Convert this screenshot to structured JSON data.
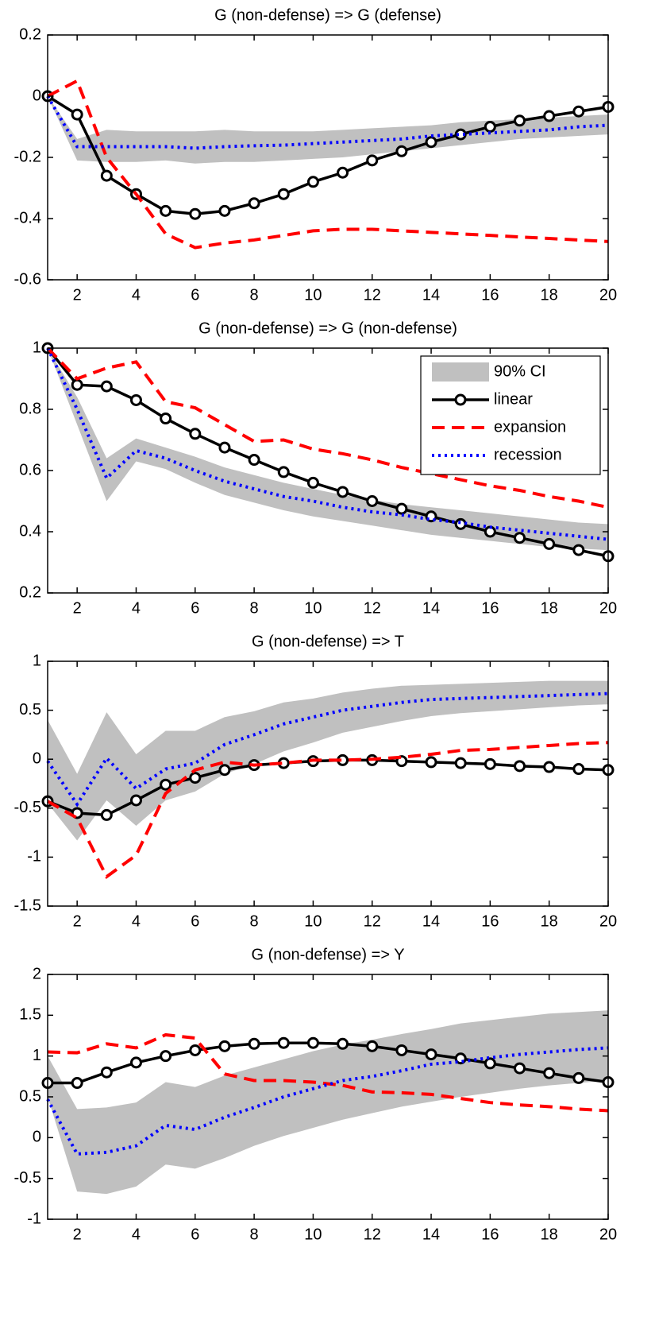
{
  "chart_data": [
    {
      "type": "line",
      "title": "G (non-defense) => G (defense)",
      "x": [
        1,
        2,
        3,
        4,
        5,
        6,
        7,
        8,
        9,
        10,
        11,
        12,
        13,
        14,
        15,
        16,
        17,
        18,
        19,
        20
      ],
      "xlim": [
        1,
        20
      ],
      "xticks": [
        2,
        4,
        6,
        8,
        10,
        12,
        14,
        16,
        18,
        20
      ],
      "ylim": [
        -0.6,
        0.2
      ],
      "yticks": [
        -0.6,
        -0.4,
        -0.2,
        0,
        0.2
      ],
      "series": [
        {
          "color": "#c0c0c0",
          "lower": [
            0,
            -0.21,
            -0.215,
            -0.215,
            -0.21,
            -0.22,
            -0.215,
            -0.215,
            -0.21,
            -0.205,
            -0.2,
            -0.19,
            -0.18,
            -0.17,
            -0.16,
            -0.15,
            -0.14,
            -0.135,
            -0.13,
            -0.125
          ],
          "upper": [
            0,
            -0.14,
            -0.11,
            -0.115,
            -0.115,
            -0.115,
            -0.11,
            -0.115,
            -0.115,
            -0.115,
            -0.11,
            -0.105,
            -0.1,
            -0.095,
            -0.085,
            -0.08,
            -0.075,
            -0.07,
            -0.065,
            -0.06
          ]
        },
        {
          "color": "#000000",
          "dash": "solid",
          "marker": "circle",
          "values": [
            0,
            -0.06,
            -0.26,
            -0.32,
            -0.375,
            -0.385,
            -0.375,
            -0.35,
            -0.32,
            -0.28,
            -0.25,
            -0.21,
            -0.18,
            -0.15,
            -0.125,
            -0.1,
            -0.08,
            -0.065,
            -0.05,
            -0.035
          ]
        },
        {
          "color": "#ff0000",
          "dash": "dashed",
          "values": [
            0,
            0.05,
            -0.2,
            -0.32,
            -0.45,
            -0.495,
            -0.48,
            -0.47,
            -0.455,
            -0.44,
            -0.435,
            -0.435,
            -0.44,
            -0.445,
            -0.45,
            -0.455,
            -0.46,
            -0.465,
            -0.47,
            -0.475
          ]
        },
        {
          "color": "#0000ff",
          "dash": "dotted",
          "values": [
            0,
            -0.165,
            -0.165,
            -0.165,
            -0.165,
            -0.17,
            -0.165,
            -0.162,
            -0.16,
            -0.155,
            -0.15,
            -0.145,
            -0.14,
            -0.13,
            -0.125,
            -0.12,
            -0.115,
            -0.11,
            -0.1,
            -0.095
          ]
        }
      ]
    },
    {
      "type": "line",
      "title": "G (non-defense) => G (non-defense)",
      "x": [
        1,
        2,
        3,
        4,
        5,
        6,
        7,
        8,
        9,
        10,
        11,
        12,
        13,
        14,
        15,
        16,
        17,
        18,
        19,
        20
      ],
      "xlim": [
        1,
        20
      ],
      "xticks": [
        2,
        4,
        6,
        8,
        10,
        12,
        14,
        16,
        18,
        20
      ],
      "ylim": [
        0.2,
        1
      ],
      "yticks": [
        0.2,
        0.4,
        0.6,
        0.8,
        1
      ],
      "legend": "upper right",
      "series": [
        {
          "name": "90% CI",
          "color": "#c0c0c0",
          "lower": [
            1,
            0.75,
            0.5,
            0.63,
            0.605,
            0.56,
            0.52,
            0.495,
            0.47,
            0.45,
            0.435,
            0.42,
            0.405,
            0.39,
            0.38,
            0.37,
            0.36,
            0.35,
            0.345,
            0.34
          ],
          "upper": [
            1,
            0.84,
            0.64,
            0.705,
            0.675,
            0.645,
            0.61,
            0.585,
            0.56,
            0.54,
            0.52,
            0.505,
            0.49,
            0.48,
            0.47,
            0.46,
            0.45,
            0.44,
            0.43,
            0.425
          ]
        },
        {
          "name": "linear",
          "color": "#000000",
          "dash": "solid",
          "marker": "circle",
          "values": [
            1,
            0.88,
            0.875,
            0.83,
            0.77,
            0.72,
            0.675,
            0.635,
            0.595,
            0.56,
            0.53,
            0.5,
            0.475,
            0.45,
            0.425,
            0.4,
            0.38,
            0.36,
            0.34,
            0.32
          ]
        },
        {
          "name": "expansion",
          "color": "#ff0000",
          "dash": "dashed",
          "values": [
            1,
            0.9,
            0.935,
            0.955,
            0.825,
            0.805,
            0.75,
            0.695,
            0.7,
            0.67,
            0.655,
            0.635,
            0.61,
            0.59,
            0.57,
            0.55,
            0.535,
            0.515,
            0.5,
            0.48
          ]
        },
        {
          "name": "recession",
          "color": "#0000ff",
          "dash": "dotted",
          "values": [
            1,
            0.8,
            0.575,
            0.665,
            0.64,
            0.6,
            0.565,
            0.54,
            0.515,
            0.5,
            0.48,
            0.465,
            0.455,
            0.44,
            0.43,
            0.415,
            0.405,
            0.395,
            0.385,
            0.375
          ]
        }
      ]
    },
    {
      "type": "line",
      "title": "G (non-defense) => T",
      "x": [
        1,
        2,
        3,
        4,
        5,
        6,
        7,
        8,
        9,
        10,
        11,
        12,
        13,
        14,
        15,
        16,
        17,
        18,
        19,
        20
      ],
      "xlim": [
        1,
        20
      ],
      "xticks": [
        2,
        4,
        6,
        8,
        10,
        12,
        14,
        16,
        18,
        20
      ],
      "ylim": [
        -1.5,
        1
      ],
      "yticks": [
        -1.5,
        -1,
        -0.5,
        0,
        0.5,
        1
      ],
      "series": [
        {
          "color": "#c0c0c0",
          "lower": [
            -0.45,
            -0.83,
            -0.42,
            -0.68,
            -0.42,
            -0.33,
            -0.15,
            -0.05,
            0.08,
            0.17,
            0.27,
            0.33,
            0.39,
            0.44,
            0.47,
            0.49,
            0.51,
            0.53,
            0.55,
            0.56
          ],
          "upper": [
            0.4,
            -0.15,
            0.48,
            0.05,
            0.29,
            0.29,
            0.43,
            0.49,
            0.58,
            0.62,
            0.68,
            0.72,
            0.75,
            0.76,
            0.77,
            0.78,
            0.79,
            0.8,
            0.8,
            0.8
          ]
        },
        {
          "color": "#000000",
          "dash": "solid",
          "marker": "circle",
          "values": [
            -0.43,
            -0.55,
            -0.57,
            -0.42,
            -0.26,
            -0.19,
            -0.11,
            -0.06,
            -0.04,
            -0.02,
            -0.01,
            -0.01,
            -0.02,
            -0.03,
            -0.04,
            -0.05,
            -0.07,
            -0.08,
            -0.1,
            -0.11
          ]
        },
        {
          "color": "#ff0000",
          "dash": "dashed",
          "values": [
            -0.43,
            -0.6,
            -1.2,
            -0.98,
            -0.35,
            -0.11,
            -0.03,
            -0.06,
            -0.04,
            -0.01,
            -0.01,
            0,
            0.02,
            0.05,
            0.09,
            0.1,
            0.12,
            0.14,
            0.16,
            0.17
          ]
        },
        {
          "color": "#0000ff",
          "dash": "dotted",
          "values": [
            -0.02,
            -0.46,
            0.01,
            -0.3,
            -0.1,
            -0.04,
            0.15,
            0.25,
            0.36,
            0.43,
            0.5,
            0.54,
            0.58,
            0.61,
            0.62,
            0.63,
            0.64,
            0.65,
            0.66,
            0.67
          ]
        }
      ]
    },
    {
      "type": "line",
      "title": "G (non-defense) => Y",
      "x": [
        1,
        2,
        3,
        4,
        5,
        6,
        7,
        8,
        9,
        10,
        11,
        12,
        13,
        14,
        15,
        16,
        17,
        18,
        19,
        20
      ],
      "xlim": [
        1,
        20
      ],
      "xticks": [
        2,
        4,
        6,
        8,
        10,
        12,
        14,
        16,
        18,
        20
      ],
      "ylim": [
        -1,
        2
      ],
      "yticks": [
        -1,
        -0.5,
        0,
        0.5,
        1,
        1.5,
        2
      ],
      "series": [
        {
          "color": "#c0c0c0",
          "lower": [
            0.5,
            -0.66,
            -0.69,
            -0.6,
            -0.33,
            -0.38,
            -0.25,
            -0.1,
            0.02,
            0.12,
            0.22,
            0.3,
            0.38,
            0.44,
            0.5,
            0.55,
            0.6,
            0.64,
            0.67,
            0.7
          ],
          "upper": [
            1,
            0.35,
            0.37,
            0.43,
            0.68,
            0.62,
            0.76,
            0.86,
            0.96,
            1.06,
            1.14,
            1.2,
            1.27,
            1.33,
            1.4,
            1.44,
            1.48,
            1.52,
            1.54,
            1.56
          ]
        },
        {
          "color": "#000000",
          "dash": "solid",
          "marker": "circle",
          "values": [
            0.67,
            0.67,
            0.8,
            0.92,
            1,
            1.07,
            1.12,
            1.15,
            1.16,
            1.16,
            1.15,
            1.12,
            1.07,
            1.02,
            0.97,
            0.91,
            0.85,
            0.79,
            0.73,
            0.68
          ]
        },
        {
          "color": "#ff0000",
          "dash": "dashed",
          "values": [
            1.05,
            1.04,
            1.15,
            1.1,
            1.26,
            1.22,
            0.78,
            0.7,
            0.7,
            0.68,
            0.64,
            0.56,
            0.55,
            0.53,
            0.48,
            0.43,
            0.4,
            0.38,
            0.35,
            0.33
          ]
        },
        {
          "color": "#0000ff",
          "dash": "dotted",
          "values": [
            0.47,
            -0.2,
            -0.18,
            -0.1,
            0.15,
            0.1,
            0.25,
            0.37,
            0.5,
            0.6,
            0.7,
            0.75,
            0.82,
            0.9,
            0.93,
            0.98,
            1.02,
            1.05,
            1.08,
            1.1
          ]
        }
      ]
    }
  ]
}
